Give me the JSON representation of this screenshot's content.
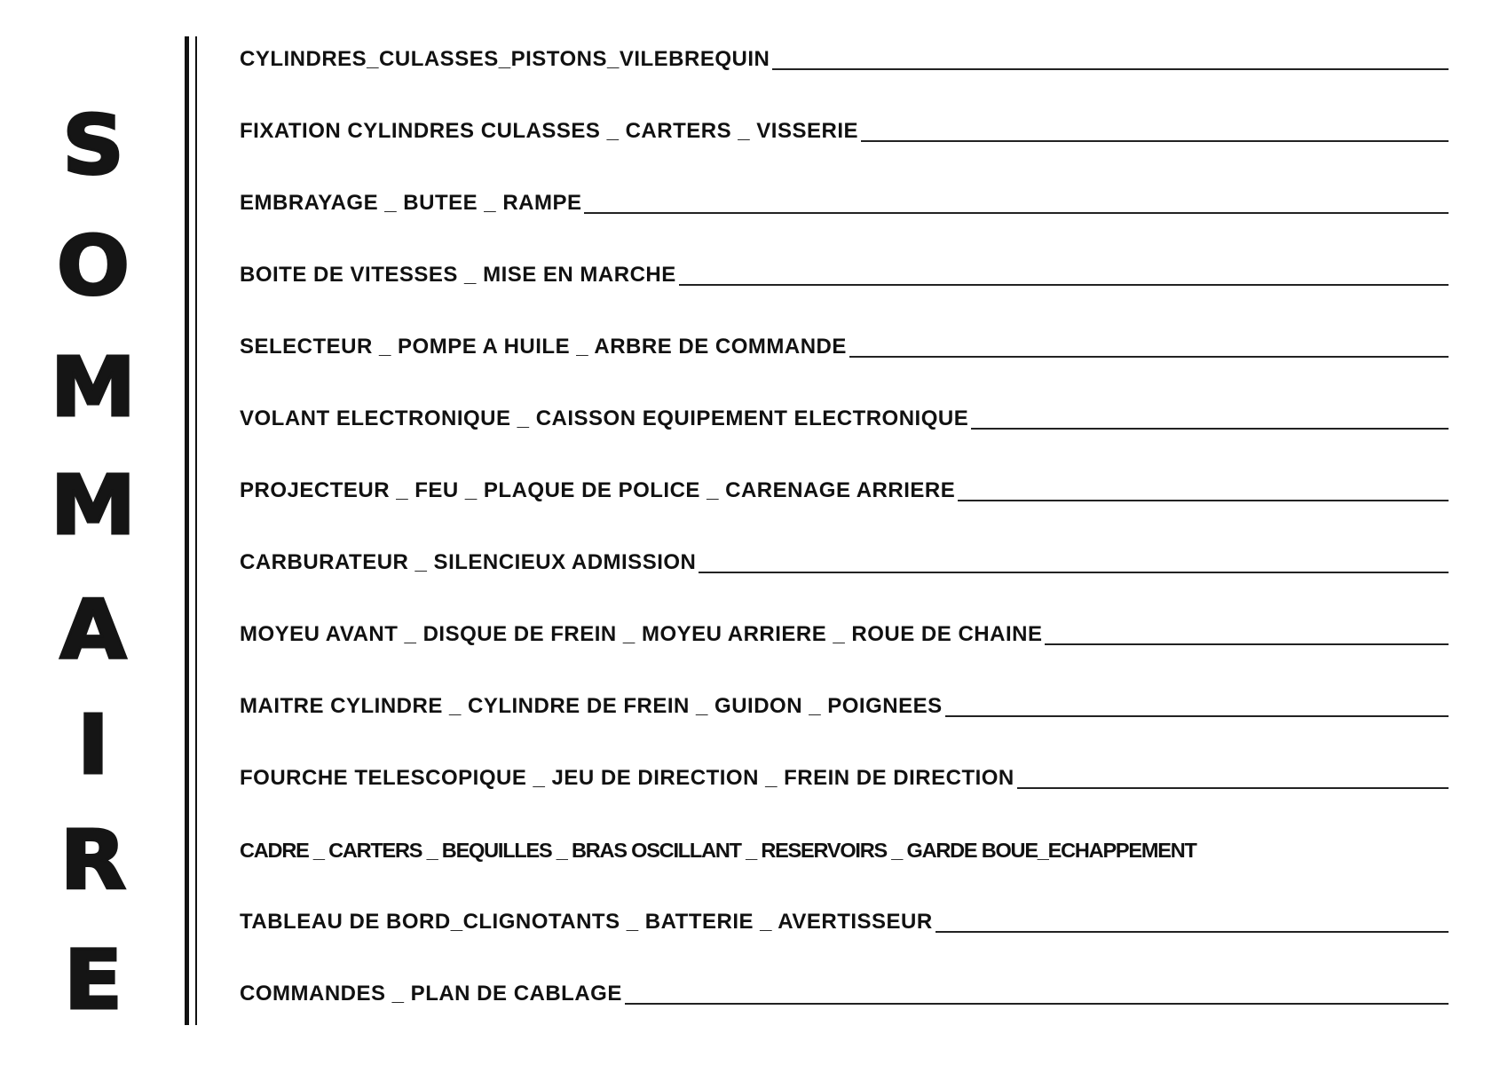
{
  "title_letters": [
    "S",
    "O",
    "M",
    "M",
    "A",
    "I",
    "R",
    "E"
  ],
  "entries": [
    "CYLINDRES_CULASSES_PISTONS_VILEBREQUIN",
    "FIXATION  CYLINDRES CULASSES _ CARTERS _ VISSERIE",
    "EMBRAYAGE _ BUTEE _ RAMPE",
    "BOITE DE VITESSES _ MISE EN MARCHE",
    "SELECTEUR _ POMPE A HUILE _ ARBRE  DE COMMANDE",
    "VOLANT ELECTRONIQUE _ CAISSON EQUIPEMENT ELECTRONIQUE",
    "PROJECTEUR  _ FEU _ PLAQUE DE POLICE _ CARENAGE ARRIERE",
    "CARBURATEUR _ SILENCIEUX ADMISSION",
    "MOYEU AVANT _ DISQUE DE FREIN _ MOYEU ARRIERE _ ROUE DE CHAINE",
    "MAITRE CYLINDRE _ CYLINDRE DE FREIN _ GUIDON _ POIGNEES",
    "FOURCHE TELESCOPIQUE _ JEU DE DIRECTION _ FREIN DE DIRECTION",
    "CADRE _ CARTERS _ BEQUILLES _ BRAS OSCILLANT _ RESERVOIRS _ GARDE BOUE_ECHAPPEMENT",
    "TABLEAU DE BORD_CLIGNOTANTS _ BATTERIE _ AVERTISSEUR",
    "COMMANDES _ PLAN  DE CABLAGE"
  ]
}
